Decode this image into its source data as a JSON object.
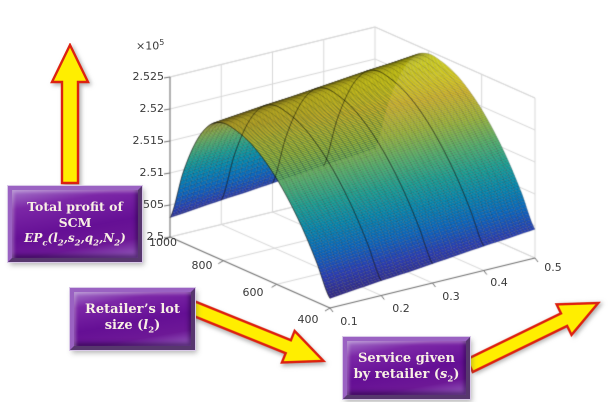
{
  "style": {
    "background": "#ffffff",
    "grid_color": "#d8d8d8",
    "axis_color": "#707070",
    "tick_text_color": "#3a3a3a",
    "arrow_yellow": "#ffee00",
    "arrow_outline_red": "#dd2211",
    "box_purple": "#6d1896",
    "box_purple_light": "#a677cb",
    "box_text_cream": "#f8f0e4"
  },
  "chart_data": {
    "type": "surface",
    "title": "",
    "x_axis": {
      "var": "s2",
      "description": "Service given by retailer",
      "min": 0.1,
      "max": 0.5,
      "ticks": [
        "0.1",
        "0.2",
        "0.3",
        "0.4",
        "0.5"
      ],
      "values": [
        0.1,
        0.15,
        0.2,
        0.25,
        0.3,
        0.35,
        0.4,
        0.45,
        0.5
      ]
    },
    "y_axis": {
      "var": "l2",
      "description": "Retailer's lot size",
      "min": 400,
      "max": 1000,
      "ticks": [
        "400",
        "600",
        "800",
        "1000"
      ],
      "values": [
        400,
        450,
        500,
        550,
        600,
        650,
        700,
        750,
        800,
        850,
        900,
        950,
        1000
      ]
    },
    "z_axis": {
      "var": "EPc",
      "description": "Total profit of SCM",
      "exponent_base": "×10",
      "exponent": "5",
      "min": 2.5,
      "max": 2.525,
      "ticks": [
        "2.5",
        "2.505",
        "2.51",
        "2.515",
        "2.52",
        "2.525"
      ]
    },
    "z_grid": [
      [
        2.5015,
        2.5019,
        2.5023,
        2.5026,
        2.503,
        2.5034,
        2.5038,
        2.5041,
        2.5045
      ],
      [
        2.5062,
        2.5066,
        2.507,
        2.5073,
        2.5077,
        2.5081,
        2.5085,
        2.5088,
        2.5092
      ],
      [
        2.5103,
        2.5107,
        2.5111,
        2.5114,
        2.5118,
        2.5122,
        2.5126,
        2.5129,
        2.5133
      ],
      [
        2.5137,
        2.5141,
        2.5145,
        2.5148,
        2.5152,
        2.5156,
        2.516,
        2.5163,
        2.5167
      ],
      [
        2.5165,
        2.5169,
        2.5173,
        2.5176,
        2.518,
        2.5184,
        2.5188,
        2.5191,
        2.5195
      ],
      [
        2.5187,
        2.5191,
        2.5195,
        2.5198,
        2.5202,
        2.5206,
        2.521,
        2.5213,
        2.5217
      ],
      [
        2.5203,
        2.5207,
        2.5211,
        2.5214,
        2.5218,
        2.5222,
        2.5226,
        2.5229,
        2.5233
      ],
      [
        2.5212,
        2.5216,
        2.522,
        2.5223,
        2.5227,
        2.5231,
        2.5235,
        2.5238,
        2.5242
      ],
      [
        2.5215,
        2.5219,
        2.5223,
        2.5226,
        2.523,
        2.5234,
        2.5238,
        2.5241,
        2.5245
      ],
      [
        2.5203,
        2.5207,
        2.5211,
        2.5214,
        2.5218,
        2.5222,
        2.5226,
        2.5229,
        2.5233
      ],
      [
        2.5169,
        2.5173,
        2.5177,
        2.518,
        2.5184,
        2.5188,
        2.5192,
        2.5195,
        2.5199
      ],
      [
        2.5111,
        2.5115,
        2.5119,
        2.5122,
        2.5126,
        2.513,
        2.5134,
        2.5137,
        2.5141
      ],
      [
        2.503,
        2.5034,
        2.5038,
        2.5041,
        2.5045,
        2.5049,
        2.5053,
        2.5056,
        2.506
      ]
    ],
    "colormap": "parula",
    "colormap_stops": [
      [
        0.0,
        "#352a87"
      ],
      [
        0.12,
        "#2b3fb5"
      ],
      [
        0.25,
        "#0c68bf"
      ],
      [
        0.38,
        "#0689b1"
      ],
      [
        0.5,
        "#1ba397"
      ],
      [
        0.62,
        "#54b470"
      ],
      [
        0.75,
        "#a3bd3c"
      ],
      [
        0.87,
        "#ddc02a"
      ],
      [
        1.0,
        "#f9fb14"
      ]
    ]
  },
  "annotations": {
    "profit_box": {
      "line1": "Total profit of",
      "line2": "SCM",
      "formula_parts": [
        "EP",
        "c",
        "(l",
        "2",
        ",s",
        "2",
        ",q",
        "2",
        ",N",
        "2",
        ")"
      ]
    },
    "lot_box": {
      "line1": "Retailer’s lot",
      "line2_parts": [
        "size (",
        "l",
        "2",
        ")"
      ]
    },
    "service_box": {
      "line1": "Service given",
      "line2_parts": [
        "by retailer (",
        "s",
        "2",
        ")"
      ]
    }
  }
}
